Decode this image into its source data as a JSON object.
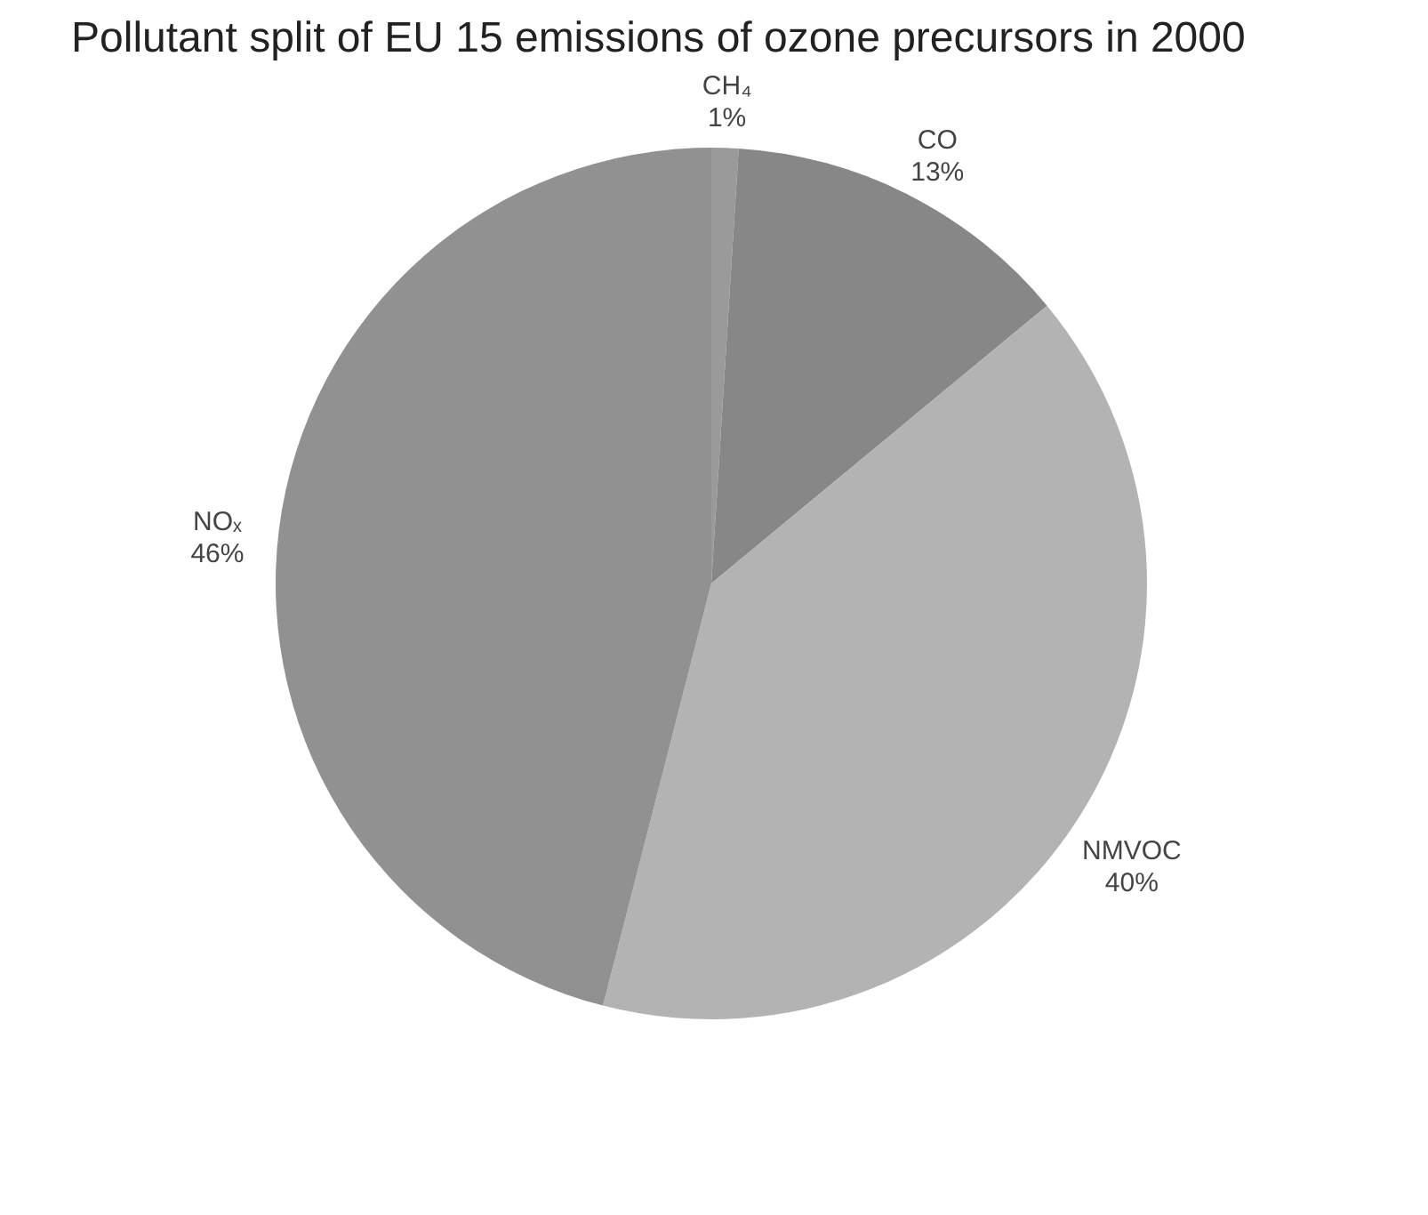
{
  "chart_data": {
    "type": "pie",
    "title": "Pollutant split of EU 15 emissions of ozone precursors in 2000",
    "categories": [
      "CH₄",
      "CO",
      "NMVOC",
      "NOₓ"
    ],
    "values": [
      1,
      13,
      40,
      46
    ],
    "value_labels": [
      "1%",
      "13%",
      "40%",
      "46%"
    ],
    "colors": [
      "#9a9a9a",
      "#878787",
      "#b3b3b3",
      "#919191"
    ]
  }
}
